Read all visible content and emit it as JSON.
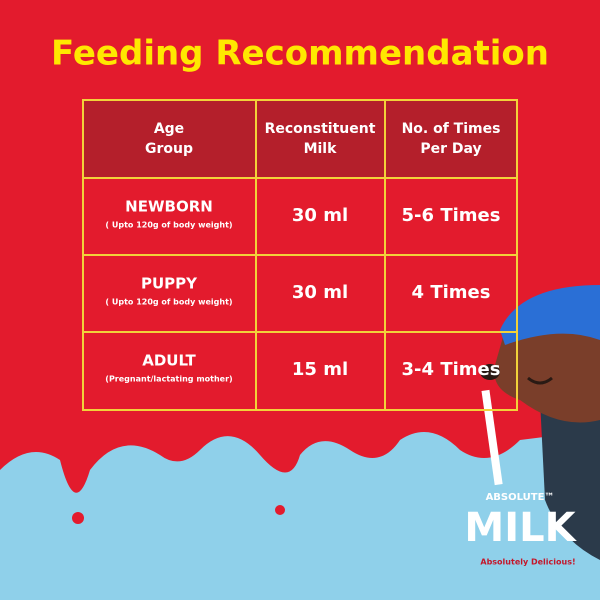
{
  "title": "Feeding Recommendation",
  "table": {
    "headers": [
      [
        "Age",
        "Group"
      ],
      [
        "Reconstituent",
        "Milk"
      ],
      [
        "No. of Times",
        "Per Day"
      ]
    ],
    "rows": [
      {
        "group": "NEWBORN",
        "note": "( Upto 120g of body weight)",
        "milk": "30 ml",
        "times": "5-6 Times"
      },
      {
        "group": "PUPPY",
        "note": "( Upto 120g of body weight)",
        "milk": "30 ml",
        "times": "4 Times"
      },
      {
        "group": "ADULT",
        "note": "(Pregnant/lactating mother)",
        "milk": "15 ml",
        "times": "3-4 Times"
      }
    ]
  },
  "brand": {
    "top": "ABSOLUTE™",
    "name": "MILK",
    "tagline": "Absolutely Delicious!"
  }
}
